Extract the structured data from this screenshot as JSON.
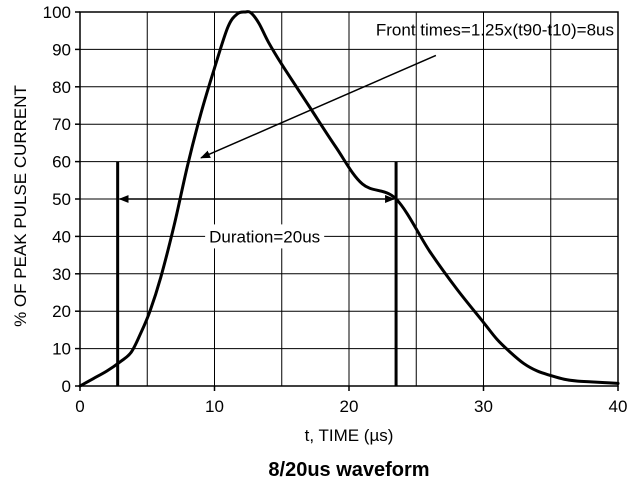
{
  "chart_data": {
    "type": "line",
    "title": "8/20us waveform",
    "xlabel": "t, TIME (µs)",
    "ylabel": "% OF PEAK PULSE CURRENT",
    "xlim": [
      0,
      40
    ],
    "ylim": [
      0,
      100
    ],
    "xticks": [
      "0",
      "10",
      "20",
      "30",
      "40"
    ],
    "yticks": [
      "0",
      "10",
      "20",
      "30",
      "40",
      "50",
      "60",
      "70",
      "80",
      "90",
      "100"
    ],
    "grid": true,
    "series": [
      {
        "x": [
          0,
          1,
          2,
          3,
          3.8,
          4.5,
          5.2,
          6,
          7,
          8,
          9,
          10,
          11,
          11.7,
          12.3,
          12.7,
          13.3,
          14,
          15,
          17,
          19,
          21,
          23.5,
          26,
          28,
          30,
          31,
          32,
          33,
          34,
          35,
          36,
          37,
          38,
          39,
          40
        ],
        "y": [
          0,
          2,
          4,
          6.5,
          9,
          14,
          20,
          29,
          43,
          59,
          73,
          85,
          96,
          99.5,
          100,
          99.8,
          97,
          92,
          86,
          75,
          64,
          54,
          50,
          36,
          26,
          17,
          12.5,
          9,
          6,
          4,
          2.8,
          1.8,
          1.3,
          1.1,
          0.9,
          0.7
        ]
      }
    ],
    "vlines": [
      {
        "x": 2.8,
        "y_top": 60
      },
      {
        "x": 23.5,
        "y_top": 60
      }
    ],
    "annotations": {
      "front_times": {
        "text": "Front times=1.25x(t90-t10)=8us",
        "x": 22,
        "y": 90,
        "arrow_to": {
          "x": 9,
          "y": 61
        }
      },
      "duration": {
        "text": "Duration=20us",
        "x": 9.6,
        "y": 40,
        "arrow_from": {
          "x": 2.8,
          "y": 50
        },
        "arrow_to": {
          "x": 23.5,
          "y": 50
        }
      }
    }
  }
}
